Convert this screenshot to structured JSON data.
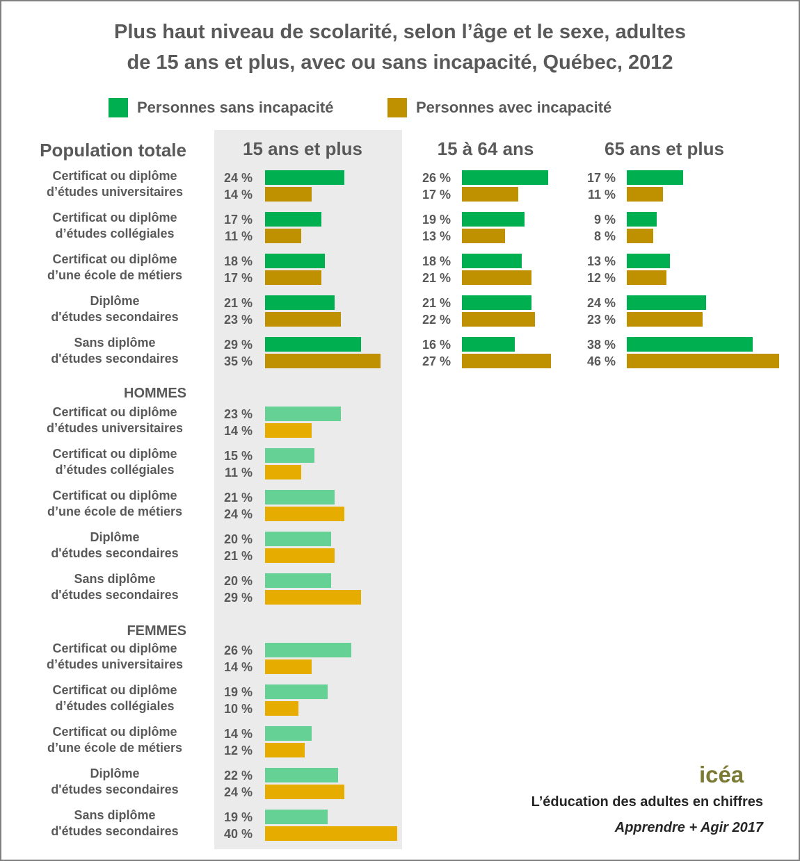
{
  "chart_data": {
    "type": "bar",
    "orientation": "horizontal",
    "title": "Plus haut niveau de scolarité, selon l’âge et le sexe, adultes de 15 ans et plus, avec ou sans incapacité, Québec, 2012",
    "title_lines": [
      "Plus haut niveau de scolarité, selon l’âge et le sexe, adultes",
      "de 15 ans et plus, avec ou sans incapacité, Québec, 2012"
    ],
    "legend": [
      {
        "name": "Personnes sans incapacité",
        "color": "#00b050"
      },
      {
        "name": "Personnes avec incapacité",
        "color": "#bf9000"
      }
    ],
    "colors": {
      "total_sans": "#00b050",
      "total_avec": "#bf9000",
      "sex_sans": "#66d194",
      "sex_avec": "#e6ac00",
      "panel_bg": "#ebebeb"
    },
    "unit": "%",
    "column_headers": [
      "15 ans et plus",
      "15 à 64 ans",
      "65 ans et plus"
    ],
    "categories": [
      [
        "Certificat ou diplôme",
        "d’études universitaires"
      ],
      [
        "Certificat ou diplôme",
        "d’études collégiales"
      ],
      [
        "Certificat ou diplôme",
        "d’une école de métiers"
      ],
      [
        "Diplôme",
        "d'études secondaires"
      ],
      [
        "Sans diplôme",
        "d'études secondaires"
      ]
    ],
    "sections": [
      {
        "name": "Population totale",
        "groups": [
          {
            "column": "15 ans et plus",
            "series": [
              {
                "name": "Personnes sans incapacité",
                "values": [
                  24,
                  17,
                  18,
                  21,
                  29
                ]
              },
              {
                "name": "Personnes avec incapacité",
                "values": [
                  14,
                  11,
                  17,
                  23,
                  35
                ]
              }
            ]
          },
          {
            "column": "15 à 64 ans",
            "series": [
              {
                "name": "Personnes sans incapacité",
                "values": [
                  26,
                  19,
                  18,
                  21,
                  16
                ]
              },
              {
                "name": "Personnes avec incapacité",
                "values": [
                  17,
                  13,
                  21,
                  22,
                  27
                ]
              }
            ]
          },
          {
            "column": "65 ans et plus",
            "series": [
              {
                "name": "Personnes sans incapacité",
                "values": [
                  17,
                  9,
                  13,
                  24,
                  38
                ]
              },
              {
                "name": "Personnes avec incapacité",
                "values": [
                  11,
                  8,
                  12,
                  23,
                  46
                ]
              }
            ]
          }
        ]
      },
      {
        "name": "HOMMES",
        "groups": [
          {
            "column": "15 ans et plus",
            "series": [
              {
                "name": "Personnes sans incapacité",
                "values": [
                  23,
                  15,
                  21,
                  20,
                  20
                ]
              },
              {
                "name": "Personnes avec incapacité",
                "values": [
                  14,
                  11,
                  24,
                  21,
                  29
                ]
              }
            ]
          }
        ]
      },
      {
        "name": "FEMMES",
        "groups": [
          {
            "column": "15 ans et plus",
            "series": [
              {
                "name": "Personnes sans incapacité",
                "values": [
                  26,
                  19,
                  14,
                  22,
                  19
                ]
              },
              {
                "name": "Personnes avec incapacité",
                "values": [
                  14,
                  10,
                  12,
                  24,
                  40
                ]
              }
            ]
          }
        ]
      }
    ],
    "grid": false,
    "legend_position": "top"
  },
  "logo_text": "icéa",
  "footer": {
    "line1": "L’éducation des adultes en chiffres",
    "line2": "Apprendre + Agir 2017"
  }
}
